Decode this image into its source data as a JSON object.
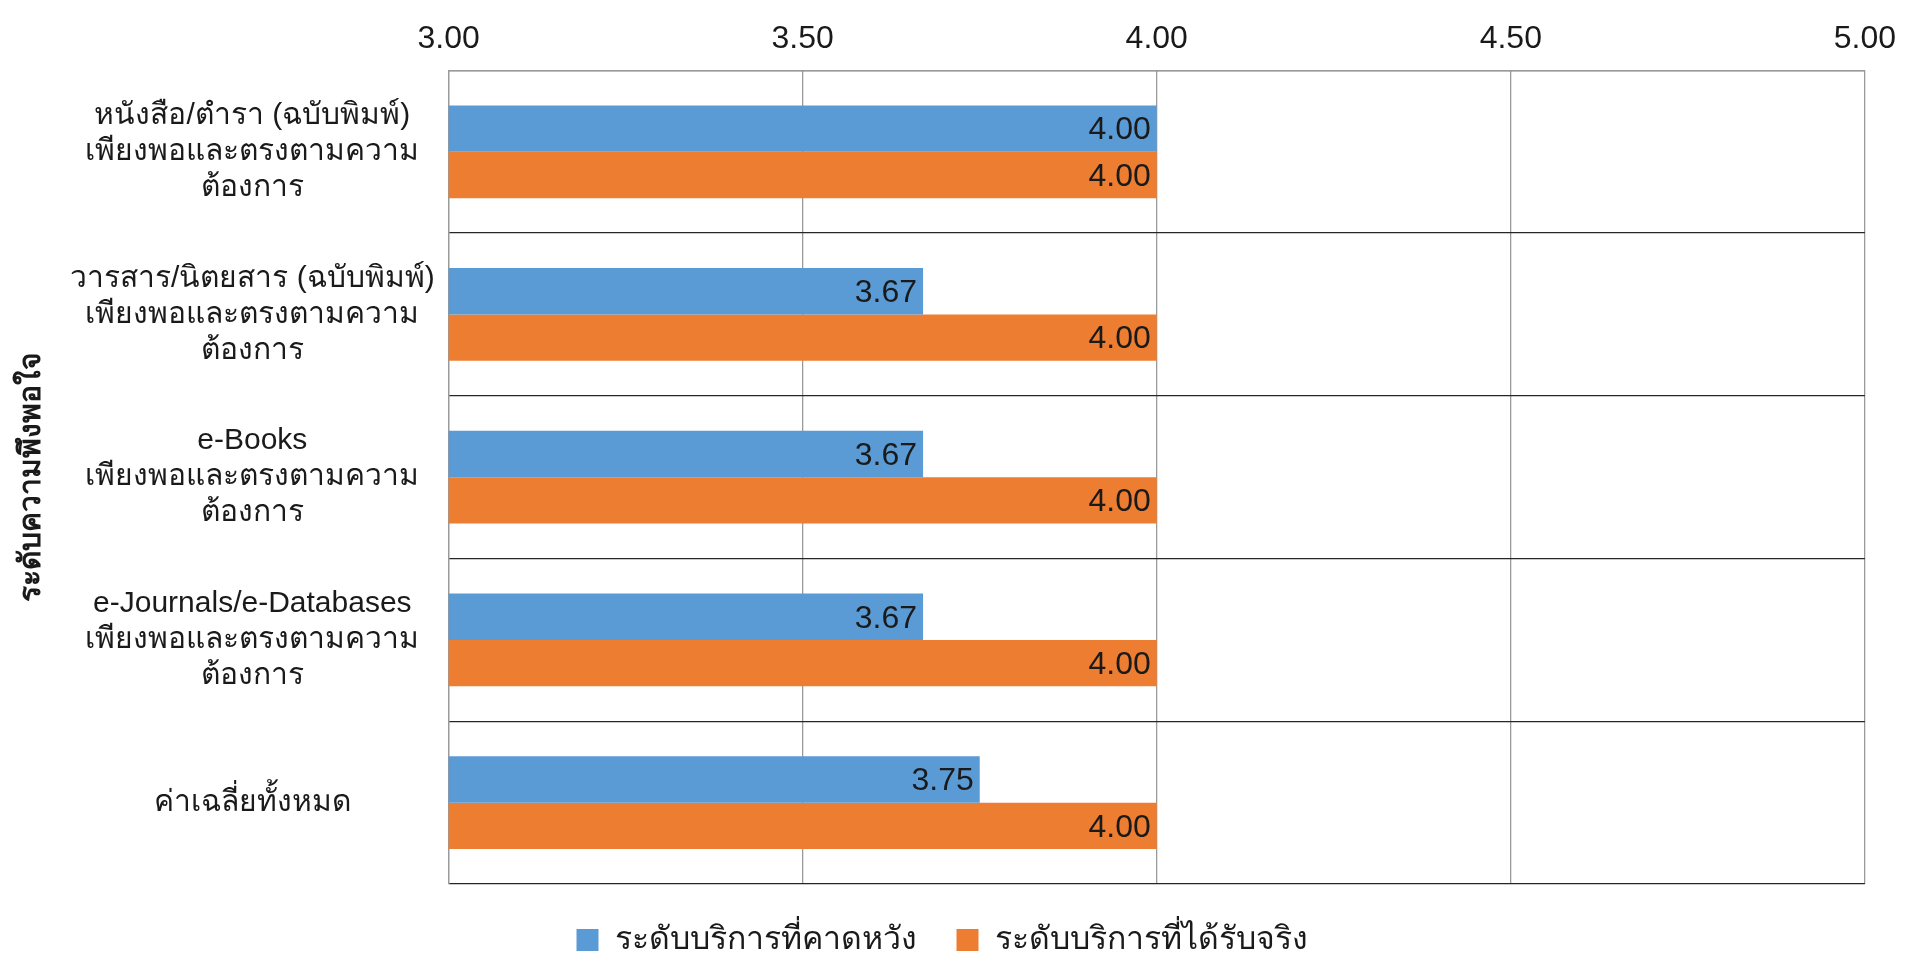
{
  "chart_data": {
    "type": "bar",
    "orientation": "horizontal",
    "ylabel": "ระดับความพึงพอใจ",
    "categories": [
      "หนังสือ/ตำรา (ฉบับพิมพ์)\nเพียงพอและตรงตามความต้องการ",
      "วารสาร/นิตยสาร (ฉบับพิมพ์)\nเพียงพอและตรงตามความต้องการ",
      "e-Books\nเพียงพอและตรงตามความต้องการ",
      "e-Journals/e-Databases\nเพียงพอและตรงตามความต้องการ",
      "ค่าเฉลี่ยทั้งหมด"
    ],
    "series": [
      {
        "name": "ระดับบริการที่คาดหวัง",
        "color": "#5b9bd5",
        "values": [
          4.0,
          3.67,
          3.67,
          3.67,
          3.75
        ],
        "value_labels": [
          "4.00",
          "3.67",
          "3.67",
          "3.67",
          "3.75"
        ]
      },
      {
        "name": "ระดับบริการที่ได้รับจริง",
        "color": "#ed7d31",
        "values": [
          4.0,
          4.0,
          4.0,
          4.0,
          4.0
        ],
        "value_labels": [
          "4.00",
          "4.00",
          "4.00",
          "4.00",
          "4.00"
        ]
      }
    ],
    "xlim": [
      3,
      5
    ],
    "xticks": [
      {
        "value": 3,
        "label": "3.00"
      },
      {
        "value": 3.5,
        "label": "3.50"
      },
      {
        "value": 4,
        "label": "4.00"
      },
      {
        "value": 4.5,
        "label": "4.50"
      },
      {
        "value": 5,
        "label": "5.00"
      }
    ],
    "grid": true,
    "legend": "bottom"
  }
}
